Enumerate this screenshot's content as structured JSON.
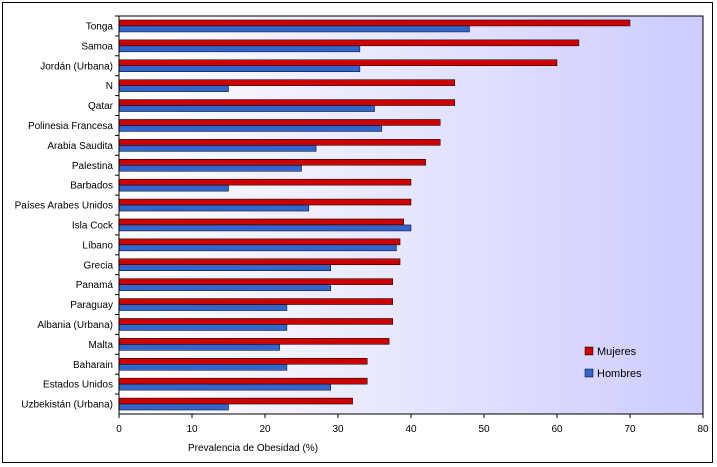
{
  "chart_data": {
    "type": "bar",
    "orientation": "horizontal",
    "title": "",
    "xlabel": "Prevalencia de Obesidad (%)",
    "ylabel": "",
    "xlim": [
      0,
      80
    ],
    "xticks": [
      0,
      10,
      20,
      30,
      40,
      50,
      60,
      70,
      80
    ],
    "grid": false,
    "legend_position": "right",
    "categories": [
      "Tonga",
      "Samoa",
      "Jordán (Urbana)",
      "N",
      "Qatar",
      "Polinesia Francesa",
      "Arabia Saudita",
      "Palestina",
      "Barbados",
      "Países Arabes Unidos",
      "Isla Cock",
      "Líbano",
      "Grecia",
      "Panamá",
      "Paraguay",
      "Albania (Urbana)",
      "Malta",
      "Baharain",
      "Estados Unidos",
      "Uzbekistán (Urbana)"
    ],
    "series": [
      {
        "name": "Mujeres",
        "color": "#cc0000",
        "values": [
          70,
          63,
          60,
          46,
          46,
          44,
          44,
          42,
          40,
          40,
          39,
          38.5,
          38.5,
          37.5,
          37.5,
          37.5,
          37,
          34,
          34,
          32
        ]
      },
      {
        "name": "Hombres",
        "color": "#3366cc",
        "values": [
          48,
          33,
          33,
          15,
          35,
          36,
          27,
          25,
          15,
          26,
          40,
          38,
          29,
          29,
          23,
          23,
          22,
          23,
          29,
          15
        ]
      }
    ],
    "plot_background": "#ccccff"
  }
}
